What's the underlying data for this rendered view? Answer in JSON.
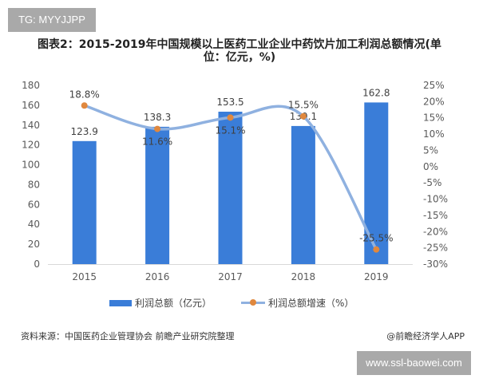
{
  "watermark_tag": "TG: MYYJJPP",
  "title": "图表2：2015-2019年中国规模以上医药工业企业中药饮片加工利润总额情况(单位：亿元，%)",
  "title_line1": "图表2：2015-2019年中国规模以上医药工业企业中药饮片加工利润总额情况(单",
  "title_line2": "位：亿元，%)",
  "source": "资料来源：中国医药企业管理协会 前瞻产业研究院整理",
  "credit": "@前瞻经济学人APP",
  "site_tag": "www.ssl-baowei.com",
  "legend": {
    "bar_label": "利润总额（亿元）",
    "line_label": "利润总额增速（%）"
  },
  "colors": {
    "bar": "#3a7dd8",
    "line": "#8fb1e0",
    "marker": "#e0883e",
    "axis_text": "#595959"
  },
  "chart_data": {
    "type": "bar+line",
    "title": "图表2：2015-2019年中国规模以上医药工业企业中药饮片加工利润总额情况(单位：亿元，%)",
    "categories": [
      "2015",
      "2016",
      "2017",
      "2018",
      "2019"
    ],
    "series": [
      {
        "name": "利润总额（亿元）",
        "type": "bar",
        "axis": "left",
        "values": [
          123.9,
          138.3,
          153.5,
          139.1,
          162.8
        ],
        "labels": [
          "123.9",
          "138.3",
          "153.5",
          "139.1",
          "162.8"
        ]
      },
      {
        "name": "利润总额增速（%）",
        "type": "line",
        "axis": "right",
        "values": [
          18.8,
          11.6,
          15.1,
          15.5,
          -25.5
        ],
        "labels": [
          "18.8%",
          "11.6%",
          "15.1%",
          "15.5%",
          "-25.5%"
        ]
      }
    ],
    "left_axis": {
      "min": 0,
      "max": 180,
      "step": 20,
      "ticks": [
        "0",
        "20",
        "40",
        "60",
        "80",
        "100",
        "120",
        "140",
        "160",
        "180"
      ]
    },
    "right_axis": {
      "min": -30,
      "max": 25,
      "step": 5,
      "ticks": [
        "-30%",
        "-25%",
        "-20%",
        "-15%",
        "-10%",
        "-5%",
        "0%",
        "5%",
        "10%",
        "15%",
        "20%",
        "25%"
      ]
    },
    "xlabel": "",
    "ylabel": "",
    "grid": false,
    "legend_position": "bottom"
  }
}
